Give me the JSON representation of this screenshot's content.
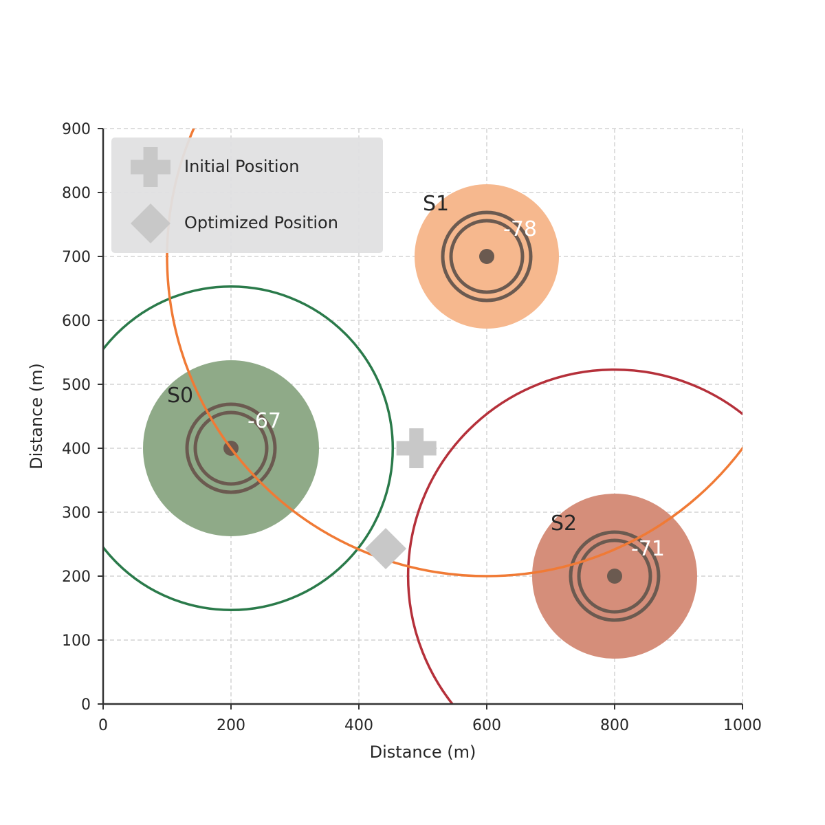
{
  "chart_data": {
    "type": "scatter",
    "xlabel": "Distance (m)",
    "ylabel": "Distance (m)",
    "xlim": [
      0,
      1000
    ],
    "ylim": [
      0,
      900
    ],
    "xticks": [
      "0",
      "200",
      "400",
      "600",
      "800",
      "1000"
    ],
    "yticks": [
      "0",
      "100",
      "200",
      "300",
      "400",
      "500",
      "600",
      "700",
      "800",
      "900"
    ],
    "xtick_values": [
      0,
      200,
      400,
      600,
      800,
      1000
    ],
    "ytick_values": [
      0,
      100,
      200,
      300,
      400,
      500,
      600,
      700,
      800,
      900
    ],
    "grid": true,
    "legend_position": "top-left",
    "legend": [
      {
        "label": "Initial Position",
        "marker": "plus"
      },
      {
        "label": "Optimized Position",
        "marker": "diamond"
      }
    ],
    "stations": [
      {
        "label": "S0",
        "x": 200,
        "y": 400,
        "rssi": "-67",
        "fill_color": "#8faa88",
        "range_radius": 253,
        "range_color": "#2a7a4a",
        "coverage_radius": 128
      },
      {
        "label": "S1",
        "x": 600,
        "y": 700,
        "rssi": "-78",
        "fill_color": "#f6b88e",
        "range_radius": 500,
        "range_color": "#f07a35",
        "coverage_radius": 105
      },
      {
        "label": "S2",
        "x": 800,
        "y": 200,
        "rssi": "-71",
        "fill_color": "#d58e7a",
        "range_radius": 323,
        "range_color": "#b5303a",
        "coverage_radius": 120
      }
    ],
    "initial_position": {
      "x": 490,
      "y": 400
    },
    "optimized_position": {
      "x": 442,
      "y": 243
    },
    "marker_color": "#c8c8c8",
    "ring_color": "#6b5a50"
  }
}
